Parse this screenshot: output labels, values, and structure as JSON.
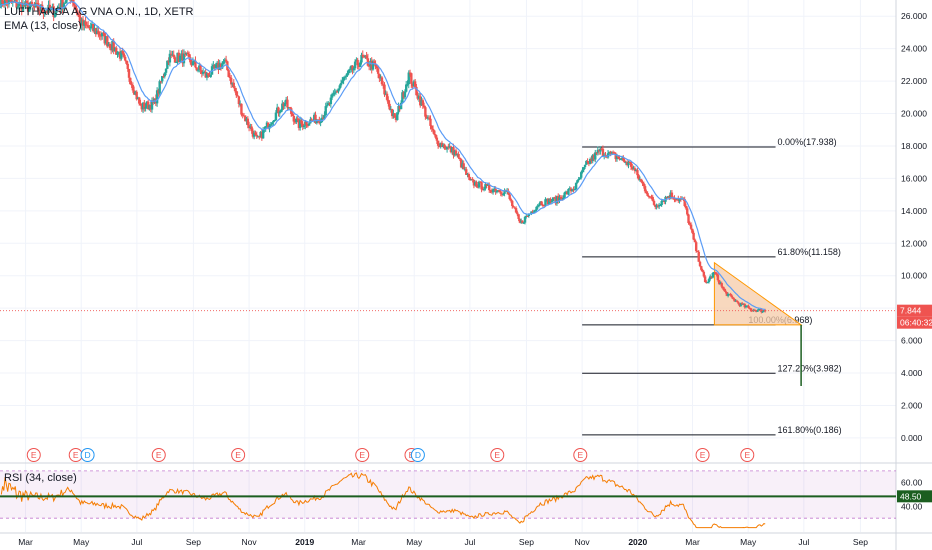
{
  "header": {
    "symbol_line": "LUFTHANSA AG VNA O.N., 1D, XETR",
    "indicator_line": "EMA (13, close)"
  },
  "rsi_panel": {
    "label": "RSI (34, close)",
    "value_badge": "48.50",
    "value": 48.5,
    "upper_band": 70,
    "lower_band": 30,
    "axis_ticks": [
      "60.00",
      "40.00"
    ],
    "axis_values": [
      60,
      40
    ]
  },
  "price_badges": {
    "last_price": "7.844",
    "countdown": "06:40:32",
    "last_price_value": 7.844
  },
  "colors": {
    "up": "#26a69a",
    "down": "#ef5350",
    "ema": "#5b9cf6",
    "rsi_line": "#f57c00",
    "rsi_band": "#9c27b0",
    "fib_line": "#131722",
    "hline": "#1b5e20",
    "triangle_fill": "#f6cba8",
    "triangle_stroke": "#ff9800",
    "last_price": "#ef5350",
    "events": "#ef5350",
    "dividend": "#2196f3"
  },
  "chart_data": {
    "type": "candlestick",
    "y_axis": {
      "ticks": [
        "26.000",
        "24.000",
        "22.000",
        "20.000",
        "18.000",
        "16.000",
        "14.000",
        "12.000",
        "10.000",
        "8.000",
        "6.000",
        "4.000",
        "2.000",
        "0.000"
      ],
      "values": [
        26,
        24,
        22,
        20,
        18,
        16,
        14,
        12,
        10,
        8,
        6,
        4,
        2,
        0
      ],
      "range": [
        -0.5,
        27.0
      ]
    },
    "x_axis": {
      "labels": [
        "Mar",
        "May",
        "Jul",
        "Sep",
        "Nov",
        "2019",
        "Mar",
        "May",
        "Jul",
        "Sep",
        "Nov",
        "2020",
        "Mar",
        "May",
        "Jul",
        "Sep"
      ],
      "dates": [
        "2018-03-01",
        "2018-05-01",
        "2018-07-01",
        "2018-09-01",
        "2018-11-01",
        "2019-01-01",
        "2019-03-01",
        "2019-05-01",
        "2019-07-01",
        "2019-09-01",
        "2019-11-01",
        "2020-01-01",
        "2020-03-01",
        "2020-05-01",
        "2020-07-01",
        "2020-09-01"
      ]
    },
    "close_path": [
      [
        "2018-02-01",
        27.0
      ],
      [
        "2018-03-01",
        26.6
      ],
      [
        "2018-04-01",
        26.3
      ],
      [
        "2018-04-20",
        27.3
      ],
      [
        "2018-05-01",
        25.5
      ],
      [
        "2018-05-20",
        25.0
      ],
      [
        "2018-06-15",
        23.5
      ],
      [
        "2018-07-05",
        20.4
      ],
      [
        "2018-07-20",
        20.6
      ],
      [
        "2018-08-05",
        23.5
      ],
      [
        "2018-08-25",
        23.4
      ],
      [
        "2018-09-15",
        22.3
      ],
      [
        "2018-10-05",
        23.2
      ],
      [
        "2018-10-25",
        20.0
      ],
      [
        "2018-11-10",
        18.3
      ],
      [
        "2018-11-25",
        19.6
      ],
      [
        "2018-12-10",
        20.7
      ],
      [
        "2018-12-25",
        19.3
      ],
      [
        "2019-01-20",
        19.8
      ],
      [
        "2019-02-10",
        21.9
      ],
      [
        "2019-03-05",
        23.4
      ],
      [
        "2019-03-20",
        22.8
      ],
      [
        "2019-04-10",
        19.5
      ],
      [
        "2019-04-25",
        22.4
      ],
      [
        "2019-05-10",
        20.5
      ],
      [
        "2019-05-25",
        18.3
      ],
      [
        "2019-06-15",
        17.6
      ],
      [
        "2019-07-01",
        15.8
      ],
      [
        "2019-07-20",
        15.4
      ],
      [
        "2019-08-10",
        15.2
      ],
      [
        "2019-08-25",
        13.2
      ],
      [
        "2019-09-15",
        14.5
      ],
      [
        "2019-10-05",
        14.7
      ],
      [
        "2019-10-25",
        15.5
      ],
      [
        "2019-11-05",
        16.8
      ],
      [
        "2019-11-20",
        17.7
      ],
      [
        "2019-12-10",
        17.3
      ],
      [
        "2019-12-25",
        16.8
      ],
      [
        "2020-01-20",
        14.3
      ],
      [
        "2020-02-05",
        15.0
      ],
      [
        "2020-02-20",
        14.6
      ],
      [
        "2020-03-05",
        11.6
      ],
      [
        "2020-03-15",
        9.5
      ],
      [
        "2020-03-25",
        10.2
      ],
      [
        "2020-04-05",
        9.0
      ],
      [
        "2020-04-20",
        8.3
      ],
      [
        "2020-05-05",
        7.9
      ],
      [
        "2020-05-20",
        7.84
      ]
    ],
    "fibonacci": {
      "start": "2019-11-01",
      "end": "2020-05-31",
      "levels": [
        {
          "label": "0.00%(17.938)",
          "value": 17.938,
          "label_date": "2020-05-31"
        },
        {
          "label": "61.80%(11.158)",
          "value": 11.158,
          "label_date": "2020-05-31"
        },
        {
          "label": "100.00%(6.968)",
          "value": 6.968,
          "label_date": "2020-04-29"
        },
        {
          "label": "127.20%(3.982)",
          "value": 3.982,
          "label_date": "2020-05-31"
        },
        {
          "label": "161.80%(0.186)",
          "value": 0.186,
          "label_date": "2020-05-31"
        }
      ]
    },
    "triangle": [
      [
        "2020-03-25",
        10.8
      ],
      [
        "2020-03-25",
        6.97
      ],
      [
        "2020-06-28",
        6.97
      ]
    ],
    "projection": {
      "date": "2020-06-28",
      "from": 6.97,
      "to": 3.2
    },
    "rsi_line_value": 48.5,
    "events": [
      {
        "date": "2018-03-10",
        "label": "E"
      },
      {
        "date": "2018-04-25",
        "label": "E"
      },
      {
        "date": "2018-05-08",
        "label": "D"
      },
      {
        "date": "2018-07-25",
        "label": "E"
      },
      {
        "date": "2018-10-20",
        "label": "E"
      },
      {
        "date": "2019-03-05",
        "label": "E"
      },
      {
        "date": "2019-04-28",
        "label": "E"
      },
      {
        "date": "2019-05-05",
        "label": "D"
      },
      {
        "date": "2019-07-31",
        "label": "E"
      },
      {
        "date": "2019-10-30",
        "label": "E"
      },
      {
        "date": "2020-03-12",
        "label": "E"
      },
      {
        "date": "2020-04-30",
        "label": "E"
      }
    ]
  }
}
